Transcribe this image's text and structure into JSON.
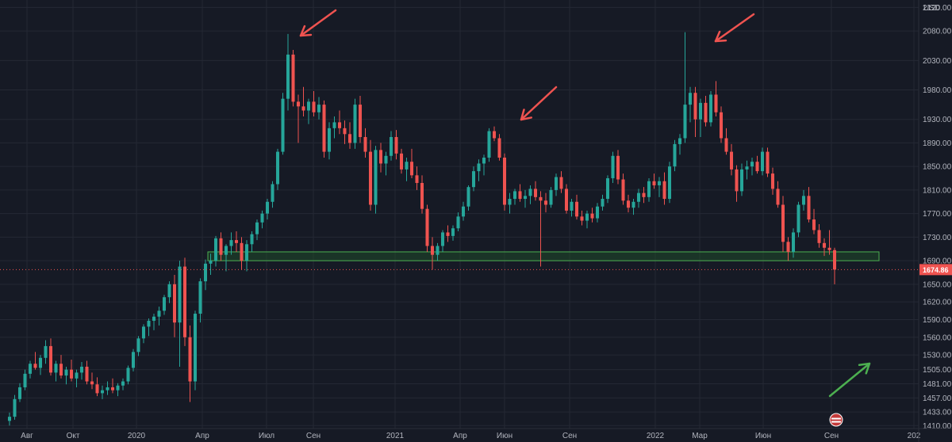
{
  "chart_data": {
    "type": "candlestick",
    "currency": "USD",
    "current_price": 1674.86,
    "current_price_label": "1674.86",
    "x_labels": [
      "Авг",
      "Окт",
      "2020",
      "Апр",
      "Июл",
      "Сен",
      "2021",
      "Апр",
      "Июн",
      "Сен",
      "2022",
      "Мар",
      "Июн",
      "Сен",
      "202"
    ],
    "y_tick_labels": [
      "2120.00",
      "2080.00",
      "2030.00",
      "1980.00",
      "1930.00",
      "1890.00",
      "1850.00",
      "1810.00",
      "1770.00",
      "1730.00",
      "1690.00",
      "1650.00",
      "1620.00",
      "1590.00",
      "1560.00",
      "1530.00",
      "1505.00",
      "1481.00",
      "1457.00",
      "1433.00",
      "1410.00"
    ],
    "y_ticks": [
      2120,
      2080,
      2030,
      1980,
      1930,
      1890,
      1850,
      1810,
      1770,
      1730,
      1690,
      1650,
      1620,
      1590,
      1560,
      1530,
      1505,
      1481,
      1457,
      1433,
      1410
    ],
    "support_zone": [
      1690,
      1705
    ],
    "candles": [
      [
        1418,
        1432,
        1410,
        1425
      ],
      [
        1425,
        1462,
        1420,
        1455
      ],
      [
        1455,
        1482,
        1450,
        1475
      ],
      [
        1475,
        1505,
        1470,
        1498
      ],
      [
        1498,
        1520,
        1490,
        1515
      ],
      [
        1515,
        1535,
        1505,
        1508
      ],
      [
        1508,
        1530,
        1496,
        1525
      ],
      [
        1525,
        1555,
        1515,
        1545
      ],
      [
        1545,
        1558,
        1495,
        1500
      ],
      [
        1500,
        1520,
        1485,
        1515
      ],
      [
        1515,
        1530,
        1490,
        1495
      ],
      [
        1495,
        1510,
        1480,
        1505
      ],
      [
        1505,
        1522,
        1485,
        1490
      ],
      [
        1490,
        1505,
        1475,
        1500
      ],
      [
        1500,
        1518,
        1488,
        1510
      ],
      [
        1510,
        1520,
        1480,
        1485
      ],
      [
        1485,
        1500,
        1472,
        1480
      ],
      [
        1480,
        1492,
        1460,
        1465
      ],
      [
        1465,
        1478,
        1455,
        1470
      ],
      [
        1470,
        1485,
        1462,
        1475
      ],
      [
        1475,
        1490,
        1465,
        1470
      ],
      [
        1470,
        1482,
        1460,
        1478
      ],
      [
        1478,
        1490,
        1470,
        1485
      ],
      [
        1485,
        1512,
        1480,
        1508
      ],
      [
        1508,
        1540,
        1502,
        1535
      ],
      [
        1535,
        1562,
        1528,
        1558
      ],
      [
        1558,
        1582,
        1550,
        1578
      ],
      [
        1578,
        1592,
        1562,
        1588
      ],
      [
        1588,
        1600,
        1572,
        1595
      ],
      [
        1595,
        1612,
        1580,
        1605
      ],
      [
        1605,
        1632,
        1598,
        1628
      ],
      [
        1628,
        1655,
        1618,
        1650
      ],
      [
        1650,
        1666,
        1560,
        1585
      ],
      [
        1585,
        1690,
        1510,
        1680
      ],
      [
        1680,
        1695,
        1545,
        1560
      ],
      [
        1560,
        1580,
        1450,
        1485
      ],
      [
        1485,
        1605,
        1470,
        1600
      ],
      [
        1600,
        1660,
        1585,
        1655
      ],
      [
        1655,
        1692,
        1640,
        1685
      ],
      [
        1685,
        1702,
        1666,
        1690
      ],
      [
        1690,
        1732,
        1680,
        1728
      ],
      [
        1728,
        1738,
        1690,
        1700
      ],
      [
        1700,
        1718,
        1672,
        1715
      ],
      [
        1715,
        1738,
        1700,
        1725
      ],
      [
        1725,
        1740,
        1705,
        1720
      ],
      [
        1720,
        1730,
        1675,
        1690
      ],
      [
        1690,
        1725,
        1672,
        1718
      ],
      [
        1718,
        1740,
        1705,
        1735
      ],
      [
        1735,
        1760,
        1725,
        1755
      ],
      [
        1755,
        1775,
        1745,
        1770
      ],
      [
        1770,
        1795,
        1760,
        1790
      ],
      [
        1790,
        1825,
        1780,
        1820
      ],
      [
        1820,
        1880,
        1810,
        1875
      ],
      [
        1875,
        1975,
        1870,
        1965
      ],
      [
        1965,
        2075,
        1945,
        2040
      ],
      [
        2040,
        2048,
        1952,
        1960
      ],
      [
        1960,
        1972,
        1890,
        1952
      ],
      [
        1952,
        1985,
        1935,
        1945
      ],
      [
        1945,
        1965,
        1922,
        1960
      ],
      [
        1960,
        1978,
        1935,
        1942
      ],
      [
        1942,
        1968,
        1930,
        1955
      ],
      [
        1955,
        1962,
        1865,
        1875
      ],
      [
        1875,
        1925,
        1862,
        1915
      ],
      [
        1915,
        1935,
        1898,
        1925
      ],
      [
        1925,
        1945,
        1905,
        1915
      ],
      [
        1915,
        1928,
        1888,
        1905
      ],
      [
        1905,
        1925,
        1880,
        1890
      ],
      [
        1890,
        1965,
        1880,
        1955
      ],
      [
        1955,
        1970,
        1890,
        1900
      ],
      [
        1900,
        1915,
        1865,
        1875
      ],
      [
        1875,
        1895,
        1775,
        1785
      ],
      [
        1785,
        1885,
        1770,
        1878
      ],
      [
        1878,
        1890,
        1840,
        1855
      ],
      [
        1855,
        1875,
        1835,
        1868
      ],
      [
        1868,
        1910,
        1860,
        1900
      ],
      [
        1900,
        1912,
        1862,
        1872
      ],
      [
        1872,
        1880,
        1838,
        1845
      ],
      [
        1845,
        1865,
        1825,
        1858
      ],
      [
        1858,
        1880,
        1830,
        1835
      ],
      [
        1835,
        1850,
        1810,
        1822
      ],
      [
        1822,
        1835,
        1770,
        1778
      ],
      [
        1778,
        1785,
        1705,
        1715
      ],
      [
        1715,
        1730,
        1675,
        1700
      ],
      [
        1700,
        1720,
        1690,
        1715
      ],
      [
        1715,
        1742,
        1705,
        1738
      ],
      [
        1738,
        1750,
        1722,
        1732
      ],
      [
        1732,
        1750,
        1724,
        1745
      ],
      [
        1745,
        1772,
        1740,
        1765
      ],
      [
        1765,
        1790,
        1758,
        1782
      ],
      [
        1782,
        1818,
        1775,
        1815
      ],
      [
        1815,
        1850,
        1808,
        1842
      ],
      [
        1842,
        1862,
        1825,
        1855
      ],
      [
        1855,
        1870,
        1835,
        1865
      ],
      [
        1865,
        1915,
        1858,
        1910
      ],
      [
        1910,
        1918,
        1893,
        1898
      ],
      [
        1898,
        1905,
        1860,
        1865
      ],
      [
        1865,
        1872,
        1775,
        1785
      ],
      [
        1785,
        1805,
        1770,
        1795
      ],
      [
        1795,
        1812,
        1785,
        1808
      ],
      [
        1808,
        1820,
        1790,
        1795
      ],
      [
        1795,
        1810,
        1780,
        1800
      ],
      [
        1800,
        1818,
        1786,
        1812
      ],
      [
        1812,
        1825,
        1792,
        1798
      ],
      [
        1798,
        1808,
        1680,
        1792
      ],
      [
        1792,
        1805,
        1772,
        1785
      ],
      [
        1785,
        1815,
        1780,
        1810
      ],
      [
        1810,
        1838,
        1800,
        1832
      ],
      [
        1832,
        1842,
        1805,
        1812
      ],
      [
        1812,
        1820,
        1770,
        1775
      ],
      [
        1775,
        1795,
        1765,
        1790
      ],
      [
        1790,
        1802,
        1760,
        1765
      ],
      [
        1765,
        1775,
        1750,
        1758
      ],
      [
        1758,
        1775,
        1745,
        1770
      ],
      [
        1770,
        1780,
        1755,
        1762
      ],
      [
        1762,
        1788,
        1755,
        1782
      ],
      [
        1782,
        1802,
        1775,
        1795
      ],
      [
        1795,
        1835,
        1788,
        1830
      ],
      [
        1830,
        1875,
        1822,
        1868
      ],
      [
        1868,
        1878,
        1820,
        1828
      ],
      [
        1828,
        1838,
        1785,
        1792
      ],
      [
        1792,
        1802,
        1772,
        1780
      ],
      [
        1780,
        1795,
        1768,
        1790
      ],
      [
        1790,
        1812,
        1780,
        1805
      ],
      [
        1805,
        1815,
        1788,
        1798
      ],
      [
        1798,
        1830,
        1790,
        1825
      ],
      [
        1825,
        1838,
        1812,
        1818
      ],
      [
        1818,
        1832,
        1798,
        1825
      ],
      [
        1825,
        1840,
        1785,
        1795
      ],
      [
        1795,
        1858,
        1788,
        1850
      ],
      [
        1850,
        1895,
        1842,
        1888
      ],
      [
        1888,
        1905,
        1870,
        1898
      ],
      [
        1898,
        2078,
        1890,
        1955
      ],
      [
        1955,
        1985,
        1925,
        1975
      ],
      [
        1975,
        1985,
        1900,
        1930
      ],
      [
        1930,
        1965,
        1900,
        1958
      ],
      [
        1958,
        1970,
        1918,
        1925
      ],
      [
        1925,
        1978,
        1918,
        1972
      ],
      [
        1972,
        1995,
        1935,
        1942
      ],
      [
        1942,
        1952,
        1890,
        1898
      ],
      [
        1898,
        1915,
        1870,
        1875
      ],
      [
        1875,
        1888,
        1835,
        1845
      ],
      [
        1845,
        1852,
        1790,
        1808
      ],
      [
        1808,
        1855,
        1800,
        1845
      ],
      [
        1845,
        1860,
        1828,
        1850
      ],
      [
        1850,
        1865,
        1835,
        1858
      ],
      [
        1858,
        1868,
        1838,
        1842
      ],
      [
        1842,
        1882,
        1835,
        1875
      ],
      [
        1875,
        1882,
        1832,
        1838
      ],
      [
        1838,
        1848,
        1802,
        1812
      ],
      [
        1812,
        1825,
        1780,
        1785
      ],
      [
        1785,
        1800,
        1705,
        1722
      ],
      [
        1722,
        1730,
        1690,
        1705
      ],
      [
        1705,
        1745,
        1695,
        1738
      ],
      [
        1738,
        1790,
        1730,
        1785
      ],
      [
        1785,
        1810,
        1775,
        1800
      ],
      [
        1800,
        1815,
        1755,
        1760
      ],
      [
        1760,
        1778,
        1735,
        1742
      ],
      [
        1742,
        1752,
        1712,
        1720
      ],
      [
        1720,
        1728,
        1698,
        1712
      ],
      [
        1712,
        1742,
        1700,
        1708
      ],
      [
        1708,
        1712,
        1650,
        1675
      ]
    ],
    "annotations": [
      {
        "type": "arrow",
        "color": "red",
        "target": "2020 peak"
      },
      {
        "type": "arrow",
        "color": "red",
        "target": "2021 peak"
      },
      {
        "type": "arrow",
        "color": "red",
        "target": "2022 peak"
      },
      {
        "type": "arrow",
        "color": "green",
        "direction": "up"
      }
    ],
    "colors": {
      "background": "#161a25",
      "up": "#26a69a",
      "down": "#ef5350",
      "grid": "#242834",
      "axis_text": "#b2b5be",
      "support_fill": "#1f4a2a",
      "support_stroke": "#4caf50",
      "price_line": "#ef5350",
      "annotation_red": "#ef5350",
      "annotation_green": "#4caf50"
    }
  }
}
